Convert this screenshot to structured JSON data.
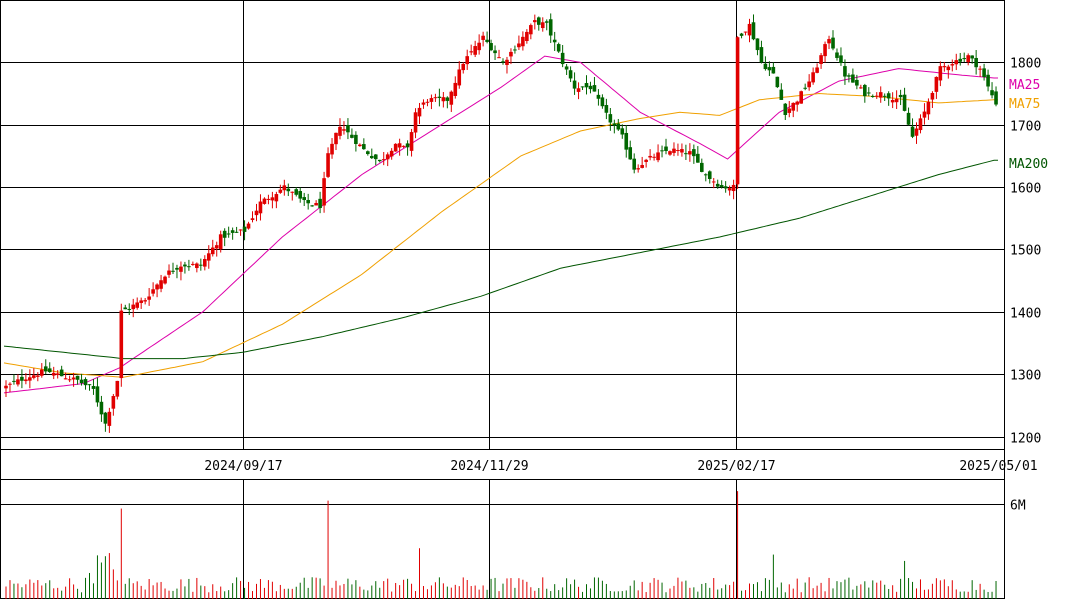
{
  "chart_data": [
    {
      "type": "candlestick",
      "ylim": [
        1180,
        1900
      ],
      "y_ticks": [
        {
          "value": 1200,
          "label": "1200"
        },
        {
          "value": 1300,
          "label": "1300"
        },
        {
          "value": 1400,
          "label": "1400"
        },
        {
          "value": 1500,
          "label": "1500"
        },
        {
          "value": 1600,
          "label": "1600"
        },
        {
          "value": 1700,
          "label": "1700"
        },
        {
          "value": 1800,
          "label": "1800"
        }
      ],
      "x_ticks": [
        {
          "index": 60,
          "label": "2024/09/17"
        },
        {
          "index": 122,
          "label": "2024/11/29"
        },
        {
          "index": 184,
          "label": "2025/02/17"
        },
        {
          "index": 250,
          "label": "2025/05/01"
        }
      ],
      "up_color": "#e00000",
      "down_color": "#006600",
      "ohlc_anchors": [
        [
          0,
          1280
        ],
        [
          5,
          1295
        ],
        [
          10,
          1305
        ],
        [
          18,
          1290
        ],
        [
          22,
          1275
        ],
        [
          25,
          1220
        ],
        [
          28,
          1290
        ],
        [
          29,
          1400
        ],
        [
          35,
          1420
        ],
        [
          40,
          1460
        ],
        [
          44,
          1475
        ],
        [
          49,
          1475
        ],
        [
          54,
          1520
        ],
        [
          60,
          1530
        ],
        [
          64,
          1575
        ],
        [
          70,
          1600
        ],
        [
          75,
          1575
        ],
        [
          79,
          1570
        ],
        [
          81,
          1650
        ],
        [
          84,
          1700
        ],
        [
          90,
          1660
        ],
        [
          94,
          1640
        ],
        [
          98,
          1670
        ],
        [
          101,
          1660
        ],
        [
          103,
          1720
        ],
        [
          106,
          1740
        ],
        [
          111,
          1740
        ],
        [
          115,
          1800
        ],
        [
          120,
          1840
        ],
        [
          125,
          1800
        ],
        [
          130,
          1840
        ],
        [
          133,
          1865
        ],
        [
          136,
          1860
        ],
        [
          140,
          1800
        ],
        [
          143,
          1760
        ],
        [
          147,
          1760
        ],
        [
          151,
          1715
        ],
        [
          155,
          1680
        ],
        [
          158,
          1630
        ],
        [
          163,
          1650
        ],
        [
          167,
          1660
        ],
        [
          172,
          1655
        ],
        [
          176,
          1620
        ],
        [
          180,
          1600
        ],
        [
          183,
          1600
        ],
        [
          184,
          1840
        ],
        [
          187,
          1860
        ],
        [
          190,
          1800
        ],
        [
          193,
          1780
        ],
        [
          196,
          1720
        ],
        [
          199,
          1740
        ],
        [
          203,
          1780
        ],
        [
          207,
          1840
        ],
        [
          211,
          1780
        ],
        [
          216,
          1750
        ],
        [
          220,
          1750
        ],
        [
          225,
          1740
        ],
        [
          228,
          1680
        ],
        [
          231,
          1720
        ],
        [
          235,
          1790
        ],
        [
          238,
          1800
        ],
        [
          242,
          1810
        ],
        [
          245,
          1790
        ],
        [
          247,
          1760
        ],
        [
          249,
          1735
        ]
      ],
      "series": [
        {
          "name": "MA25",
          "color": "#dd00aa",
          "points": [
            [
              0,
              1270
            ],
            [
              20,
              1285
            ],
            [
              29,
              1310
            ],
            [
              50,
              1400
            ],
            [
              70,
              1520
            ],
            [
              90,
              1620
            ],
            [
              110,
              1700
            ],
            [
              125,
              1760
            ],
            [
              136,
              1810
            ],
            [
              145,
              1800
            ],
            [
              160,
              1720
            ],
            [
              175,
              1670
            ],
            [
              182,
              1645
            ],
            [
              195,
              1720
            ],
            [
              210,
              1770
            ],
            [
              225,
              1790
            ],
            [
              240,
              1780
            ],
            [
              249,
              1775
            ]
          ]
        },
        {
          "name": "MA75",
          "color": "#f0a000",
          "points": [
            [
              0,
              1318
            ],
            [
              15,
              1302
            ],
            [
              30,
              1295
            ],
            [
              50,
              1320
            ],
            [
              70,
              1380
            ],
            [
              90,
              1460
            ],
            [
              110,
              1560
            ],
            [
              130,
              1650
            ],
            [
              145,
              1690
            ],
            [
              160,
              1710
            ],
            [
              170,
              1720
            ],
            [
              180,
              1715
            ],
            [
              190,
              1740
            ],
            [
              205,
              1750
            ],
            [
              220,
              1745
            ],
            [
              235,
              1735
            ],
            [
              249,
              1740
            ]
          ]
        },
        {
          "name": "MA200",
          "color": "#005500",
          "points": [
            [
              0,
              1345
            ],
            [
              15,
              1335
            ],
            [
              30,
              1325
            ],
            [
              45,
              1325
            ],
            [
              60,
              1335
            ],
            [
              80,
              1360
            ],
            [
              100,
              1390
            ],
            [
              120,
              1425
            ],
            [
              140,
              1470
            ],
            [
              160,
              1495
            ],
            [
              180,
              1520
            ],
            [
              200,
              1550
            ],
            [
              220,
              1590
            ],
            [
              235,
              1620
            ],
            [
              249,
              1643
            ]
          ]
        }
      ],
      "legend": [
        "MA25",
        "MA75",
        "MA200"
      ]
    },
    {
      "type": "bar",
      "name": "volume",
      "ylim": [
        0,
        7.5
      ],
      "y_ticks": [
        {
          "value": 6,
          "label": "6M"
        }
      ],
      "base_level": 0.7,
      "spikes": [
        {
          "index": 29,
          "value": 5.7
        },
        {
          "index": 81,
          "value": 6.2
        },
        {
          "index": 184,
          "value": 6.8
        },
        {
          "index": 104,
          "value": 3.2
        },
        {
          "index": 193,
          "value": 2.8
        },
        {
          "index": 226,
          "value": 2.4
        }
      ]
    }
  ]
}
